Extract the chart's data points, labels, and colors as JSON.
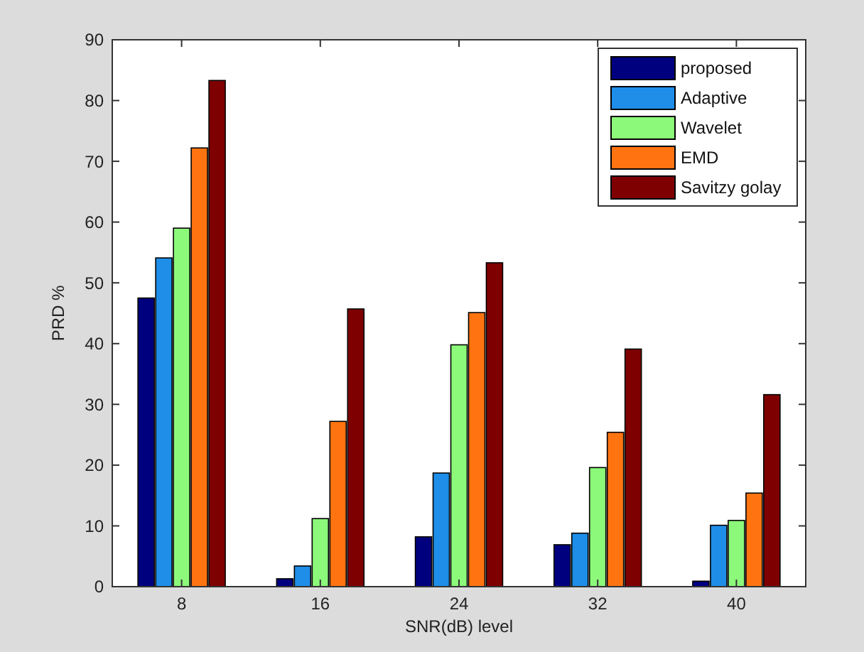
{
  "chart_data": {
    "type": "bar",
    "xlabel": "SNR(dB) level",
    "ylabel": "PRD %",
    "categories": [
      "8",
      "16",
      "24",
      "32",
      "40"
    ],
    "series": [
      {
        "name": "proposed",
        "color": "#00007f",
        "values": [
          47.5,
          1.3,
          8.2,
          6.9,
          0.9
        ]
      },
      {
        "name": "Adaptive",
        "color": "#1e8ee8",
        "values": [
          54.1,
          3.4,
          18.7,
          8.8,
          10.1
        ]
      },
      {
        "name": "Wavelet",
        "color": "#8cf97a",
        "values": [
          59.0,
          11.2,
          39.8,
          19.6,
          10.9
        ]
      },
      {
        "name": "EMD",
        "color": "#ff7410",
        "values": [
          72.2,
          27.2,
          45.1,
          25.4,
          15.4
        ]
      },
      {
        "name": "Savitzy golay",
        "color": "#7f0000",
        "values": [
          83.3,
          45.7,
          53.3,
          39.1,
          31.6
        ]
      }
    ],
    "ylim": [
      0,
      90
    ],
    "yticks": [
      0,
      10,
      20,
      30,
      40,
      50,
      60,
      70,
      80,
      90
    ],
    "grid": false,
    "legend": "top right"
  }
}
